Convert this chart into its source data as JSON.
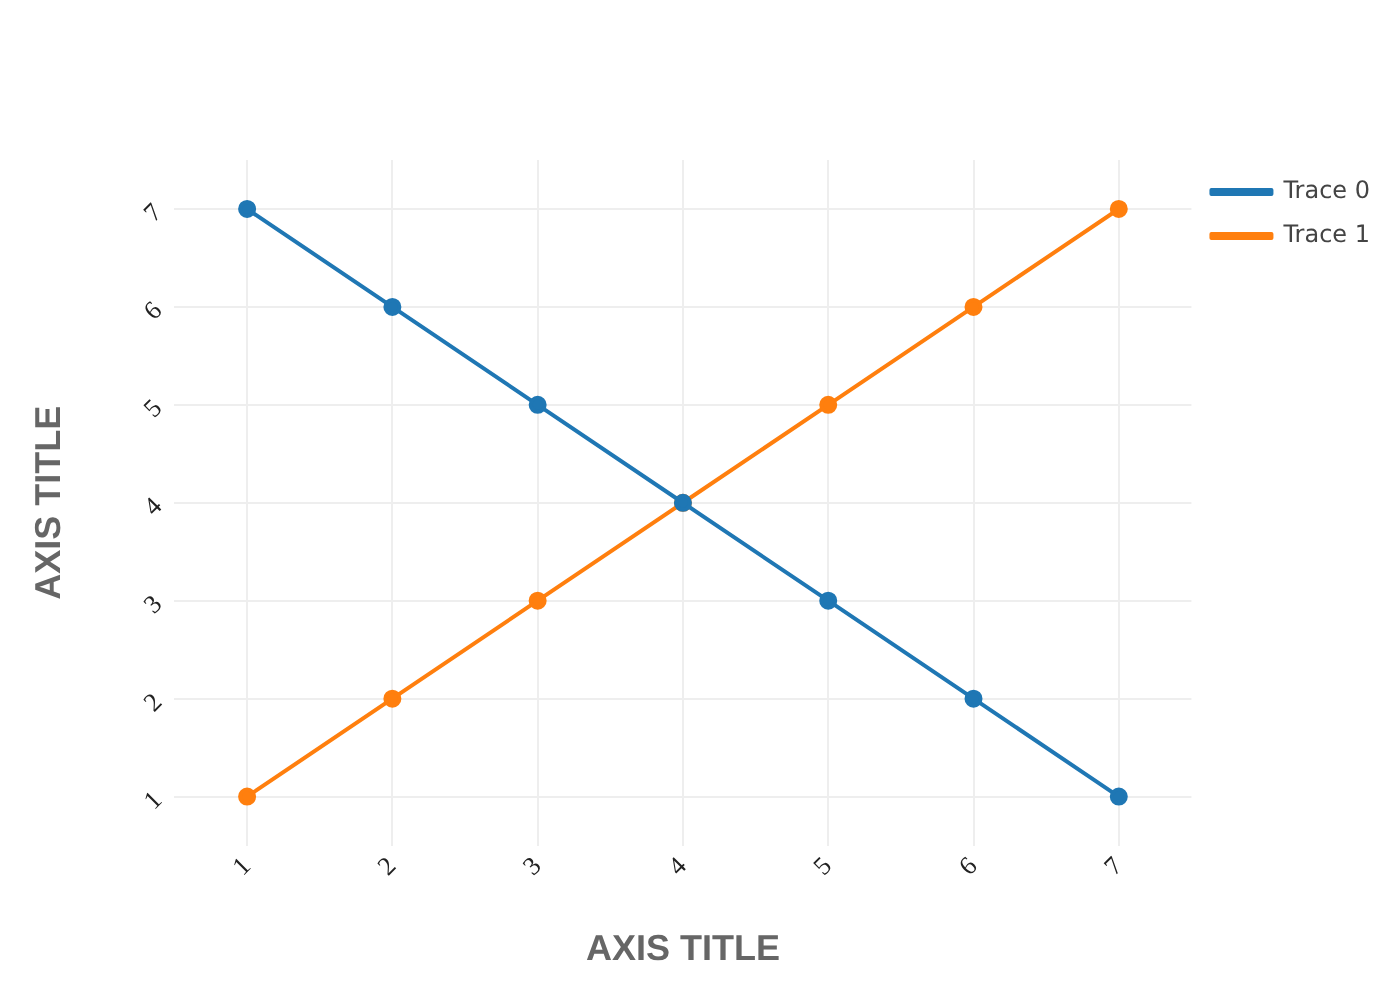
{
  "chart_data": {
    "type": "line",
    "xlabel": "AXIS TITLE",
    "ylabel": "AXIS TITLE",
    "x": [
      1,
      2,
      3,
      4,
      5,
      6,
      7
    ],
    "series": [
      {
        "name": "Trace 0",
        "color": "#1f77b4",
        "values": [
          7,
          6,
          5,
          4,
          3,
          2,
          1
        ]
      },
      {
        "name": "Trace 1",
        "color": "#ff7f0e",
        "values": [
          1,
          2,
          3,
          4,
          5,
          6,
          7
        ]
      }
    ],
    "xlim": [
      0.5,
      7.5
    ],
    "ylim": [
      0.5,
      7.5
    ],
    "xticks": [
      1,
      2,
      3,
      4,
      5,
      6,
      7
    ],
    "yticks": [
      1,
      2,
      3,
      4,
      5,
      6,
      7
    ],
    "grid": true,
    "legend": "top right",
    "marker": "circle",
    "line_style": "solid"
  }
}
